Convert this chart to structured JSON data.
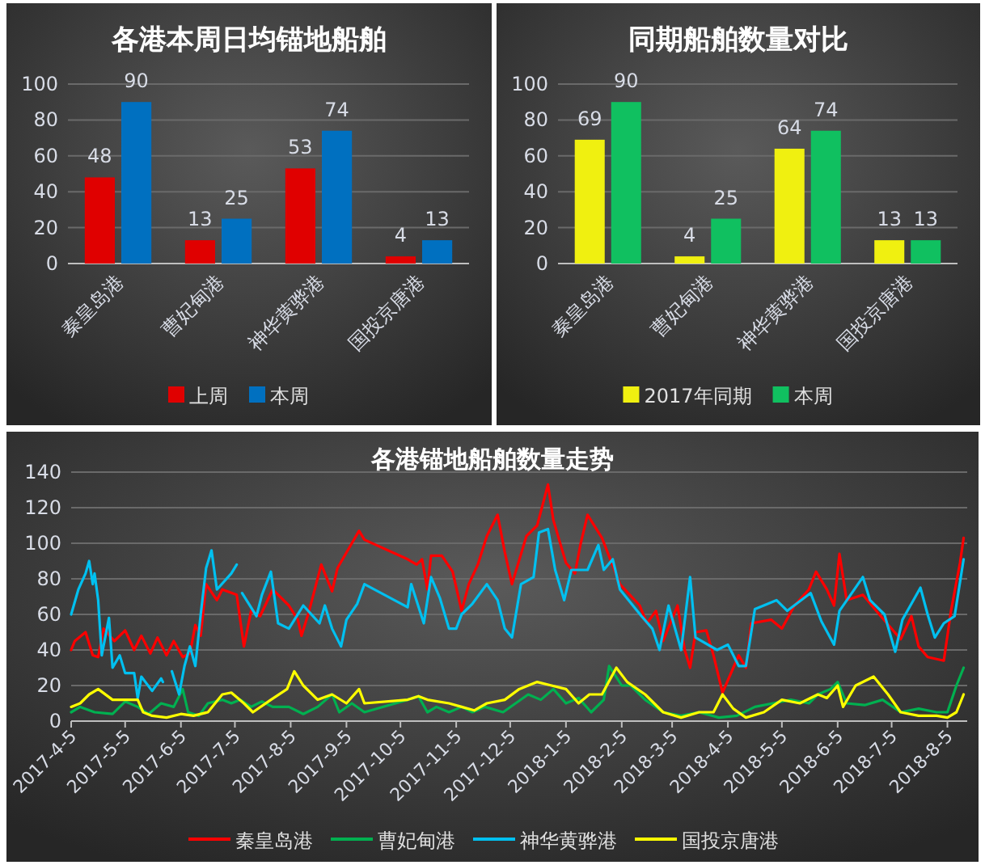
{
  "chart_data": [
    {
      "type": "bar",
      "title": "各港本周日均锚地船舶",
      "categories": [
        "秦皇岛港",
        "曹妃甸港",
        "神华黄骅港",
        "国投京唐港"
      ],
      "series": [
        {
          "name": "上周",
          "color": "#e00000",
          "values": [
            48,
            13,
            53,
            4
          ]
        },
        {
          "name": "本周",
          "color": "#0070c0",
          "values": [
            90,
            25,
            74,
            13
          ]
        }
      ],
      "ylim": [
        0,
        100
      ],
      "yticks": [
        0,
        20,
        40,
        60,
        80,
        100
      ],
      "grid": "y",
      "legend": "bottom",
      "data_labels": true
    },
    {
      "type": "bar",
      "title": "同期船舶数量对比",
      "categories": [
        "秦皇岛港",
        "曹妃甸港",
        "神华黄骅港",
        "国投京唐港"
      ],
      "series": [
        {
          "name": "2017年同期",
          "color": "#f0f010",
          "values": [
            69,
            4,
            64,
            13
          ]
        },
        {
          "name": "本周",
          "color": "#10c060",
          "values": [
            90,
            25,
            74,
            13
          ]
        }
      ],
      "ylim": [
        0,
        100
      ],
      "yticks": [
        0,
        20,
        40,
        60,
        80,
        100
      ],
      "grid": "y",
      "legend": "bottom",
      "data_labels": true
    },
    {
      "type": "line",
      "title": "各港锚地船舶数量走势",
      "xlim": [
        "2017-04-05",
        "2018-08-16"
      ],
      "xticks": [
        {
          "value": "2017-04-05",
          "label": "2017-4-5"
        },
        {
          "value": "2017-05-05",
          "label": "2017-5-5"
        },
        {
          "value": "2017-06-05",
          "label": "2017-6-5"
        },
        {
          "value": "2017-07-05",
          "label": "2017-7-5"
        },
        {
          "value": "2017-08-05",
          "label": "2017-8-5"
        },
        {
          "value": "2017-09-05",
          "label": "2017-9-5"
        },
        {
          "value": "2017-10-05",
          "label": "2017-10-5"
        },
        {
          "value": "2017-11-05",
          "label": "2017-11-5"
        },
        {
          "value": "2017-12-05",
          "label": "2017-12-5"
        },
        {
          "value": "2018-01-05",
          "label": "2018-1-5"
        },
        {
          "value": "2018-02-05",
          "label": "2018-2-5"
        },
        {
          "value": "2018-03-05",
          "label": "2018-3-5"
        },
        {
          "value": "2018-04-05",
          "label": "2018-4-5"
        },
        {
          "value": "2018-05-05",
          "label": "2018-5-5"
        },
        {
          "value": "2018-06-05",
          "label": "2018-6-5"
        },
        {
          "value": "2018-07-05",
          "label": "2018-7-5"
        },
        {
          "value": "2018-08-05",
          "label": "2018-8-5"
        }
      ],
      "ylim": [
        0,
        140
      ],
      "yticks": [
        0,
        20,
        40,
        60,
        80,
        100,
        120,
        140
      ],
      "grid": "y",
      "legend": "bottom",
      "series": [
        {
          "name": "秦皇岛港",
          "color": "#ff0000",
          "x": [
            "2017-04-05",
            "2017-04-07",
            "2017-04-13",
            "2017-04-17",
            "2017-04-20",
            "2017-04-23",
            "2017-04-29",
            "2017-05-05",
            "2017-05-10",
            "2017-05-14",
            "2017-05-19",
            "2017-05-23",
            "2017-05-28",
            "2017-06-01",
            "2017-06-06",
            "2017-06-10",
            "2017-06-13",
            "2017-06-16",
            "2017-06-19",
            "2017-06-25",
            "2017-06-28",
            "2017-07-06",
            "2017-07-10",
            "2017-07-14",
            "2017-07-19",
            "2017-07-26",
            "2017-08-04",
            "2017-08-09",
            "2017-08-11",
            "2017-08-15",
            "2017-08-22",
            "2017-08-28",
            "2017-08-31",
            "2017-09-08",
            "2017-09-12",
            "2017-09-15",
            "2017-10-09",
            "2017-10-14",
            "2017-10-17",
            "2017-10-20",
            "2017-10-22",
            "2017-10-28",
            "2017-11-03",
            "2017-11-08",
            "2017-11-12",
            "2017-11-17",
            "2017-11-22",
            "2017-11-28",
            "2017-12-02",
            "2017-12-06",
            "2017-12-14",
            "2017-12-20",
            "2017-12-26",
            "2017-12-29",
            "2018-01-05",
            "2018-01-10",
            "2018-01-13",
            "2018-01-17",
            "2018-01-25",
            "2018-02-04",
            "2018-02-15",
            "2018-02-19",
            "2018-02-24",
            "2018-02-28",
            "2018-03-08",
            "2018-03-12",
            "2018-03-15",
            "2018-03-18",
            "2018-03-24",
            "2018-03-28",
            "2018-04-02",
            "2018-04-08",
            "2018-04-11",
            "2018-04-15",
            "2018-04-18",
            "2018-04-29",
            "2018-05-05",
            "2018-05-12",
            "2018-05-20",
            "2018-05-24",
            "2018-05-30",
            "2018-06-03",
            "2018-06-06",
            "2018-06-10",
            "2018-06-19",
            "2018-06-29",
            "2018-07-10",
            "2018-07-16",
            "2018-07-20",
            "2018-07-25",
            "2018-08-03",
            "2018-08-07",
            "2018-08-12",
            "2018-08-14"
          ],
          "values": [
            40,
            45,
            50,
            37,
            36,
            52,
            45,
            51,
            40,
            48,
            38,
            47,
            37,
            45,
            36,
            38,
            54,
            48,
            77,
            68,
            74,
            71,
            42,
            62,
            59,
            74,
            65,
            57,
            48,
            61,
            88,
            73,
            86,
            100,
            107,
            102,
            91,
            88,
            91,
            74,
            93,
            93,
            84,
            62,
            77,
            88,
            104,
            116,
            95,
            77,
            104,
            110,
            133,
            113,
            89,
            83,
            99,
            116,
            103,
            77,
            65,
            55,
            62,
            45,
            65,
            40,
            30,
            50,
            51,
            37,
            16,
            30,
            37,
            30,
            55,
            57,
            52,
            65,
            74,
            84,
            74,
            65,
            94,
            68,
            71,
            59,
            46,
            59,
            42,
            36,
            34,
            62,
            89,
            103
          ]
        },
        {
          "name": "曹妃甸港",
          "color": "#00b050",
          "x": [
            "2017-04-05",
            "2017-04-10",
            "2017-04-18",
            "2017-04-28",
            "2017-05-05",
            "2017-05-12",
            "2017-05-18",
            "2017-05-25",
            "2017-06-01",
            "2017-06-06",
            "2017-06-09",
            "2017-06-15",
            "2017-06-20",
            "2017-06-28",
            "2017-07-03",
            "2017-07-08",
            "2017-07-14",
            "2017-07-20",
            "2017-07-26",
            "2017-08-04",
            "2017-08-12",
            "2017-08-20",
            "2017-08-28",
            "2017-09-01",
            "2017-09-08",
            "2017-09-15",
            "2017-10-09",
            "2017-10-15",
            "2017-10-20",
            "2017-10-25",
            "2017-11-01",
            "2017-11-08",
            "2017-11-14",
            "2017-11-21",
            "2017-12-01",
            "2017-12-08",
            "2017-12-15",
            "2017-12-22",
            "2017-12-29",
            "2018-01-05",
            "2018-01-12",
            "2018-01-19",
            "2018-01-26",
            "2018-01-29",
            "2018-02-05",
            "2018-02-10",
            "2018-02-18",
            "2018-02-28",
            "2018-03-10",
            "2018-03-20",
            "2018-03-31",
            "2018-04-10",
            "2018-04-20",
            "2018-04-30",
            "2018-05-10",
            "2018-05-20",
            "2018-05-25",
            "2018-06-01",
            "2018-06-05",
            "2018-06-10",
            "2018-06-20",
            "2018-06-30",
            "2018-07-10",
            "2018-07-20",
            "2018-07-30",
            "2018-08-05",
            "2018-08-10",
            "2018-08-14"
          ],
          "values": [
            5,
            8,
            5,
            4,
            11,
            8,
            4,
            10,
            8,
            18,
            5,
            3,
            10,
            12,
            10,
            12,
            8,
            11,
            8,
            8,
            4,
            8,
            15,
            5,
            10,
            5,
            12,
            14,
            5,
            8,
            5,
            8,
            5,
            8,
            5,
            10,
            15,
            12,
            18,
            10,
            13,
            5,
            12,
            31,
            20,
            20,
            12,
            5,
            3,
            5,
            2,
            3,
            8,
            10,
            12,
            10,
            15,
            18,
            22,
            10,
            9,
            12,
            5,
            7,
            5,
            5,
            20,
            30
          ]
        },
        {
          "name": "神华黄骅港",
          "color": "#00c0f0",
          "x": [
            "2017-04-05",
            "2017-04-09",
            "2017-04-13",
            "2017-04-15",
            "2017-04-17",
            "2017-04-18",
            "2017-04-20",
            "2017-04-22",
            "2017-04-26",
            "2017-04-28",
            "2017-05-02",
            "2017-05-05",
            "2017-05-10",
            "2017-05-12",
            "2017-05-14",
            "2017-05-20",
            "2017-05-25",
            "2017-05-26",
            "2017-05-28",
            "2017-05-31",
            "2017-06-04",
            "2017-06-07",
            "2017-06-10",
            "2017-06-13",
            "2017-06-16",
            "2017-06-19",
            "2017-06-22",
            "2017-06-25",
            "2017-07-03",
            "2017-07-06",
            "2017-07-08",
            "2017-07-09",
            "2017-07-17",
            "2017-07-20",
            "2017-07-25",
            "2017-07-29",
            "2017-08-04",
            "2017-08-12",
            "2017-08-21",
            "2017-08-24",
            "2017-08-28",
            "2017-09-02",
            "2017-09-05",
            "2017-09-11",
            "2017-09-15",
            "2017-10-09",
            "2017-10-11",
            "2017-10-18",
            "2017-10-22",
            "2017-10-27",
            "2017-11-01",
            "2017-11-05",
            "2017-11-08",
            "2017-11-14",
            "2017-11-22",
            "2017-11-28",
            "2017-12-02",
            "2017-12-06",
            "2017-12-11",
            "2017-12-18",
            "2017-12-21",
            "2017-12-26",
            "2017-12-30",
            "2018-01-04",
            "2018-01-08",
            "2018-01-17",
            "2018-01-23",
            "2018-01-26",
            "2018-01-31",
            "2018-02-04",
            "2018-02-16",
            "2018-02-22",
            "2018-02-26",
            "2018-03-03",
            "2018-03-10",
            "2018-03-15",
            "2018-03-18",
            "2018-03-30",
            "2018-04-05",
            "2018-04-11",
            "2018-04-15",
            "2018-04-20",
            "2018-05-02",
            "2018-05-08",
            "2018-05-21",
            "2018-05-27",
            "2018-06-03",
            "2018-06-06",
            "2018-06-19",
            "2018-06-23",
            "2018-07-01",
            "2018-07-07",
            "2018-07-11",
            "2018-07-21",
            "2018-07-25",
            "2018-07-29",
            "2018-08-03",
            "2018-08-09",
            "2018-08-14"
          ],
          "values": [
            60,
            74,
            83,
            90,
            77,
            83,
            68,
            37,
            58,
            30,
            37,
            27,
            27,
            13,
            25,
            17,
            24,
            22,
            null,
            28,
            15,
            31,
            42,
            31,
            60,
            86,
            96,
            74,
            83,
            88,
            null,
            72,
            59,
            71,
            84,
            55,
            52,
            65,
            55,
            65,
            52,
            42,
            57,
            66,
            77,
            64,
            77,
            55,
            81,
            69,
            52,
            52,
            60,
            66,
            77,
            68,
            52,
            47,
            77,
            81,
            106,
            108,
            85,
            68,
            85,
            85,
            99,
            85,
            91,
            74,
            59,
            52,
            40,
            65,
            40,
            81,
            47,
            40,
            43,
            31,
            31,
            63,
            68,
            62,
            72,
            56,
            43,
            62,
            81,
            68,
            60,
            39,
            57,
            75,
            60,
            47,
            55,
            59,
            91
          ]
        },
        {
          "name": "国投京唐港",
          "color": "#ffff00",
          "x": [
            "2017-04-05",
            "2017-04-10",
            "2017-04-15",
            "2017-04-20",
            "2017-04-28",
            "2017-05-05",
            "2017-05-12",
            "2017-05-15",
            "2017-05-20",
            "2017-05-28",
            "2017-06-05",
            "2017-06-12",
            "2017-06-20",
            "2017-06-28",
            "2017-07-03",
            "2017-07-10",
            "2017-07-15",
            "2017-07-25",
            "2017-08-03",
            "2017-08-07",
            "2017-08-12",
            "2017-08-20",
            "2017-08-28",
            "2017-09-05",
            "2017-09-12",
            "2017-09-15",
            "2017-10-09",
            "2017-10-15",
            "2017-10-20",
            "2017-11-01",
            "2017-11-08",
            "2017-11-15",
            "2017-11-22",
            "2017-12-02",
            "2017-12-10",
            "2017-12-20",
            "2017-12-28",
            "2018-01-05",
            "2018-01-12",
            "2018-01-18",
            "2018-01-25",
            "2018-02-02",
            "2018-02-08",
            "2018-02-18",
            "2018-02-28",
            "2018-03-10",
            "2018-03-20",
            "2018-03-28",
            "2018-04-02",
            "2018-04-08",
            "2018-04-15",
            "2018-04-25",
            "2018-05-05",
            "2018-05-15",
            "2018-05-25",
            "2018-05-30",
            "2018-06-05",
            "2018-06-08",
            "2018-06-15",
            "2018-06-25",
            "2018-07-03",
            "2018-07-10",
            "2018-07-20",
            "2018-07-30",
            "2018-08-05",
            "2018-08-10",
            "2018-08-14"
          ],
          "values": [
            8,
            10,
            15,
            18,
            12,
            12,
            12,
            5,
            3,
            2,
            4,
            3,
            5,
            15,
            16,
            10,
            5,
            12,
            18,
            28,
            20,
            12,
            15,
            10,
            18,
            10,
            12,
            14,
            12,
            10,
            8,
            6,
            10,
            12,
            18,
            22,
            20,
            18,
            10,
            15,
            15,
            30,
            22,
            15,
            5,
            2,
            5,
            5,
            15,
            7,
            2,
            5,
            12,
            10,
            15,
            13,
            20,
            8,
            20,
            25,
            15,
            5,
            3,
            3,
            2,
            5,
            15
          ]
        }
      ]
    }
  ]
}
